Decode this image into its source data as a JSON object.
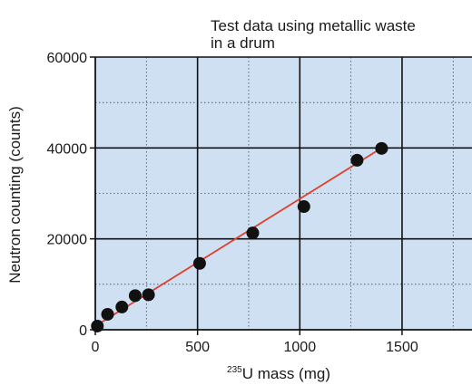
{
  "chart_data": {
    "type": "scatter",
    "title_lines": [
      "Test data using metallic waste",
      "in a drum"
    ],
    "xlabel": {
      "sup": "235",
      "main": "U mass (mg)"
    },
    "ylabel": "Neutron counting (counts)",
    "xlim": [
      0,
      1800
    ],
    "ylim": [
      0,
      60000
    ],
    "x_ticks": [
      0,
      500,
      1000,
      1500
    ],
    "y_ticks": [
      0,
      20000,
      40000,
      60000
    ],
    "x_tick_labels": [
      "0",
      "500",
      "1000",
      "1500"
    ],
    "y_tick_labels": [
      "0",
      "20000",
      "40000",
      "60000"
    ],
    "x_minor_step": 250,
    "y_minor_step": 10000,
    "grid": true,
    "plot_background": "#cfe0f2",
    "point_color": "#111111",
    "fit_line_color": "#e0402a",
    "series": [
      {
        "points": [
          [
            10,
            800
          ],
          [
            60,
            3400
          ],
          [
            130,
            5000
          ],
          [
            195,
            7500
          ],
          [
            260,
            7700
          ],
          [
            510,
            14600
          ],
          [
            770,
            21300
          ],
          [
            1020,
            27100
          ],
          [
            1280,
            37300
          ],
          [
            1400,
            39900
          ]
        ]
      }
    ],
    "fit_line": {
      "x": [
        0,
        1400
      ],
      "y": [
        800,
        40000
      ]
    }
  }
}
